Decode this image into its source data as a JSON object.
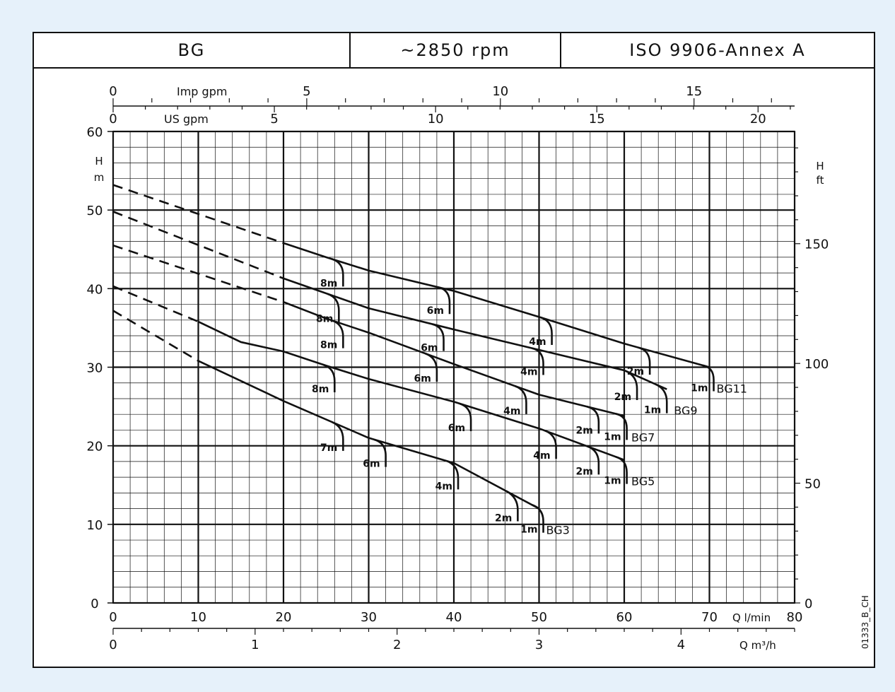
{
  "header": {
    "model": "BG",
    "speed": "~2850 rpm",
    "standard": "ISO 9906-Annex A"
  },
  "chart_data": {
    "type": "line",
    "x": {
      "label": "Q l/min",
      "range": [
        0,
        80
      ],
      "ticks": [
        0,
        10,
        20,
        30,
        40,
        50,
        60,
        70,
        80
      ]
    },
    "x2": {
      "label": "Q m³/h",
      "ticks": [
        0,
        1,
        2,
        3,
        4
      ]
    },
    "x3": {
      "label": "US gpm",
      "ticks": [
        0,
        5,
        10,
        15,
        20
      ]
    },
    "x4": {
      "label": "Imp gpm",
      "ticks": [
        0,
        5,
        10,
        15
      ]
    },
    "y": {
      "label_top": "H",
      "label_bottom": "m",
      "range": [
        0,
        60
      ],
      "ticks": [
        0,
        10,
        20,
        30,
        40,
        50,
        60
      ]
    },
    "y2": {
      "label_top": "H",
      "label_bottom": "ft",
      "ticks": [
        0,
        50,
        100,
        150
      ]
    },
    "grid": true,
    "note": "01333_B_CH",
    "series": [
      {
        "name": "BG11",
        "dashed": {
          "x": [
            0,
            20
          ],
          "y": [
            53.2,
            45.8
          ]
        },
        "solid": {
          "x": [
            20,
            25,
            30,
            40,
            50,
            60,
            70
          ],
          "y": [
            45.8,
            44.0,
            42.3,
            39.7,
            36.4,
            33.0,
            30.0
          ]
        },
        "npsh": [
          {
            "label": "8m",
            "x": 27
          },
          {
            "label": "6m",
            "x": 39.5
          },
          {
            "label": "4m",
            "x": 51.5
          },
          {
            "label": "2m",
            "x": 63
          },
          {
            "label": "1m",
            "x": 70.5
          }
        ]
      },
      {
        "name": "BG9",
        "dashed": {
          "x": [
            0,
            20
          ],
          "y": [
            49.8,
            41.3
          ]
        },
        "solid": {
          "x": [
            20,
            30,
            40,
            50,
            60,
            65
          ],
          "y": [
            41.3,
            37.5,
            34.8,
            32.2,
            29.6,
            27.2
          ]
        },
        "npsh": [
          {
            "label": "8m",
            "x": 26.5
          },
          {
            "label": "6m",
            "x": 38.8
          },
          {
            "label": "4m",
            "x": 50.5
          },
          {
            "label": "2m",
            "x": 61.5
          },
          {
            "label": "1m",
            "x": 65
          }
        ]
      },
      {
        "name": "BG7",
        "dashed": {
          "x": [
            0,
            20
          ],
          "y": [
            45.5,
            38.3
          ]
        },
        "solid": {
          "x": [
            20,
            25,
            30,
            40,
            50,
            60
          ],
          "y": [
            38.3,
            36.2,
            34.4,
            30.4,
            26.5,
            23.8
          ]
        },
        "npsh": [
          {
            "label": "8m",
            "x": 27
          },
          {
            "label": "6m",
            "x": 38
          },
          {
            "label": "4m",
            "x": 48.5
          },
          {
            "label": "2m",
            "x": 57
          },
          {
            "label": "1m",
            "x": 60.3
          }
        ]
      },
      {
        "name": "BG5",
        "dashed": {
          "x": [
            0,
            10
          ],
          "y": [
            40.3,
            35.8
          ]
        },
        "solid": {
          "x": [
            10,
            15,
            20,
            25,
            30,
            40,
            50,
            60
          ],
          "y": [
            35.8,
            33.2,
            32.0,
            30.2,
            28.5,
            25.6,
            22.2,
            18.2
          ]
        },
        "npsh": [
          {
            "label": "8m",
            "x": 26
          },
          {
            "label": "6m",
            "x": 42
          },
          {
            "label": "4m",
            "x": 52
          },
          {
            "label": "2m",
            "x": 57
          },
          {
            "label": "1m",
            "x": 60.3
          }
        ]
      },
      {
        "name": "BG3",
        "dashed": {
          "x": [
            0,
            10
          ],
          "y": [
            37.2,
            30.8
          ]
        },
        "solid": {
          "x": [
            10,
            20,
            30,
            40,
            50
          ],
          "y": [
            30.8,
            25.7,
            21.0,
            17.8,
            12.0
          ]
        },
        "npsh": [
          {
            "label": "7m",
            "x": 27
          },
          {
            "label": "6m",
            "x": 32
          },
          {
            "label": "4m",
            "x": 40.5
          },
          {
            "label": "2m",
            "x": 47.5
          },
          {
            "label": "1m",
            "x": 50.5
          }
        ]
      }
    ]
  }
}
